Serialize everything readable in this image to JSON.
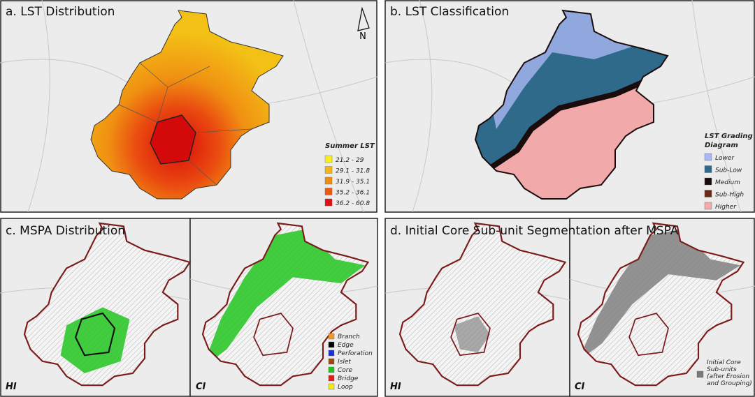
{
  "panels": [
    {
      "title": "a. LST Distribution",
      "north": "N",
      "legend": {
        "title": [
          "Summer LST"
        ],
        "items": [
          {
            "label": "21.2 - 29",
            "color": "#f7f01e"
          },
          {
            "label": "29.1 - 31.8",
            "color": "#f3b414"
          },
          {
            "label": "31.9 - 35.1",
            "color": "#f08c10"
          },
          {
            "label": "35.2 - 36.1",
            "color": "#ea5a10"
          },
          {
            "label": "36.2 - 60.8",
            "color": "#e01010"
          }
        ]
      }
    },
    {
      "title": "b. LST Classification",
      "legend": {
        "title": [
          "LST Grading",
          "Diagram"
        ],
        "items": [
          {
            "label": "Lower",
            "color": "#a9b8f2"
          },
          {
            "label": "Sub-Low",
            "color": "#2f6a8a"
          },
          {
            "label": "Medium",
            "color": "#1a0c0c"
          },
          {
            "label": "Sub-High",
            "color": "#6b2a14"
          },
          {
            "label": "Higher",
            "color": "#f2a9a9"
          }
        ]
      }
    },
    {
      "title": "c. MSPA Distribution",
      "maps": [
        "HI",
        "CI"
      ],
      "legend": {
        "items": [
          {
            "label": "Branch",
            "color": "#f0962a"
          },
          {
            "label": "Edge",
            "color": "#000000"
          },
          {
            "label": "Perforation",
            "color": "#1a2fd8"
          },
          {
            "label": "Islet",
            "color": "#9a4a12"
          },
          {
            "label": "Core",
            "color": "#22c41e"
          },
          {
            "label": "Bridge",
            "color": "#e01a1a"
          },
          {
            "label": "Loop",
            "color": "#f5e61a"
          }
        ]
      }
    },
    {
      "title": "d. Initial Core Sub-unit Segmentation after MSPA",
      "maps": [
        "HI",
        "CI"
      ],
      "legend": {
        "items": [
          {
            "label": [
              "Initial Core",
              "Sub-units",
              "(after Erosion",
              "and Grouping)"
            ],
            "color": "#7a7a7a"
          }
        ]
      }
    }
  ]
}
